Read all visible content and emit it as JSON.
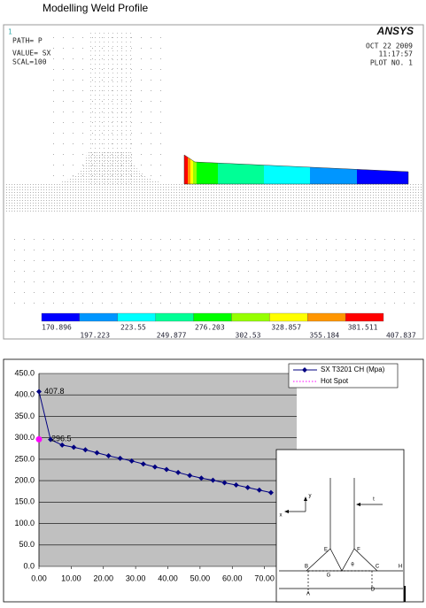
{
  "header": {
    "title": "Modelling Weld Profile"
  },
  "ansys": {
    "window_number": "1",
    "path_label": "PATH=  P",
    "value_label": "VALUE= SX",
    "scale_label": "SCAL=100",
    "date": "OCT 22 2009",
    "time": "11:17:57",
    "plot_no": "PLOT NO.   1",
    "logo": "ANSYS",
    "legend": {
      "values": [
        170.896,
        197.223,
        223.55,
        249.877,
        276.203,
        302.53,
        328.857,
        355.184,
        381.511,
        407.837
      ],
      "colors": [
        "#0000ff",
        "#0096ff",
        "#00ffff",
        "#00ff96",
        "#00ff00",
        "#96ff00",
        "#ffff00",
        "#ff9600",
        "#ff0000"
      ]
    }
  },
  "chart_data": {
    "type": "line",
    "series": [
      {
        "name": "SX T3201 CH (Mpa)",
        "color": "#000080",
        "x": [
          0,
          3.6,
          7.2,
          10.8,
          14.4,
          18,
          21.6,
          25.2,
          28.8,
          32.4,
          36,
          39.6,
          43.2,
          46.8,
          50.4,
          54,
          57.6,
          61.2,
          64.8,
          68.4,
          72
        ],
        "values": [
          407.8,
          296,
          283,
          278,
          272,
          265,
          258,
          252,
          246,
          239,
          232,
          226,
          219,
          212,
          206,
          201,
          195,
          190,
          184,
          178,
          172
        ],
        "value_labels": [
          "407.8",
          null,
          null,
          null,
          null,
          null,
          null,
          null,
          null,
          null,
          null,
          null,
          null,
          null,
          null,
          null,
          null,
          null,
          null,
          null,
          null
        ]
      },
      {
        "name": "Hot Spot",
        "color": "#ff00ff",
        "x": [
          0
        ],
        "values": [
          296.5
        ],
        "value_labels": [
          "296.5"
        ]
      }
    ],
    "xlim": [
      0,
      80
    ],
    "ylim": [
      0,
      450
    ],
    "xticks": [
      {
        "value": 0,
        "label": "0.00"
      },
      {
        "value": 10,
        "label": "10.00"
      },
      {
        "value": 20,
        "label": "20.00"
      },
      {
        "value": 30,
        "label": "30.00"
      },
      {
        "value": 40,
        "label": "40.00"
      },
      {
        "value": 50,
        "label": "50.00"
      },
      {
        "value": 60,
        "label": "60.00"
      },
      {
        "value": 70,
        "label": "70.00"
      }
    ],
    "yticks": [
      {
        "value": 0,
        "label": "0.0"
      },
      {
        "value": 50,
        "label": "50.0"
      },
      {
        "value": 100,
        "label": "100.0"
      },
      {
        "value": 150,
        "label": "150.0"
      },
      {
        "value": 200,
        "label": "200.0"
      },
      {
        "value": 250,
        "label": "250.0"
      },
      {
        "value": 300,
        "label": "300.0"
      },
      {
        "value": 350,
        "label": "350.0"
      },
      {
        "value": 400,
        "label": "400.0"
      },
      {
        "value": 450,
        "label": "450.0"
      }
    ],
    "grid": true
  },
  "inset": {
    "labels": [
      "y",
      "x",
      "t",
      "E",
      "F",
      "B",
      "G",
      "θ",
      "C",
      "H",
      "A",
      "D"
    ]
  }
}
